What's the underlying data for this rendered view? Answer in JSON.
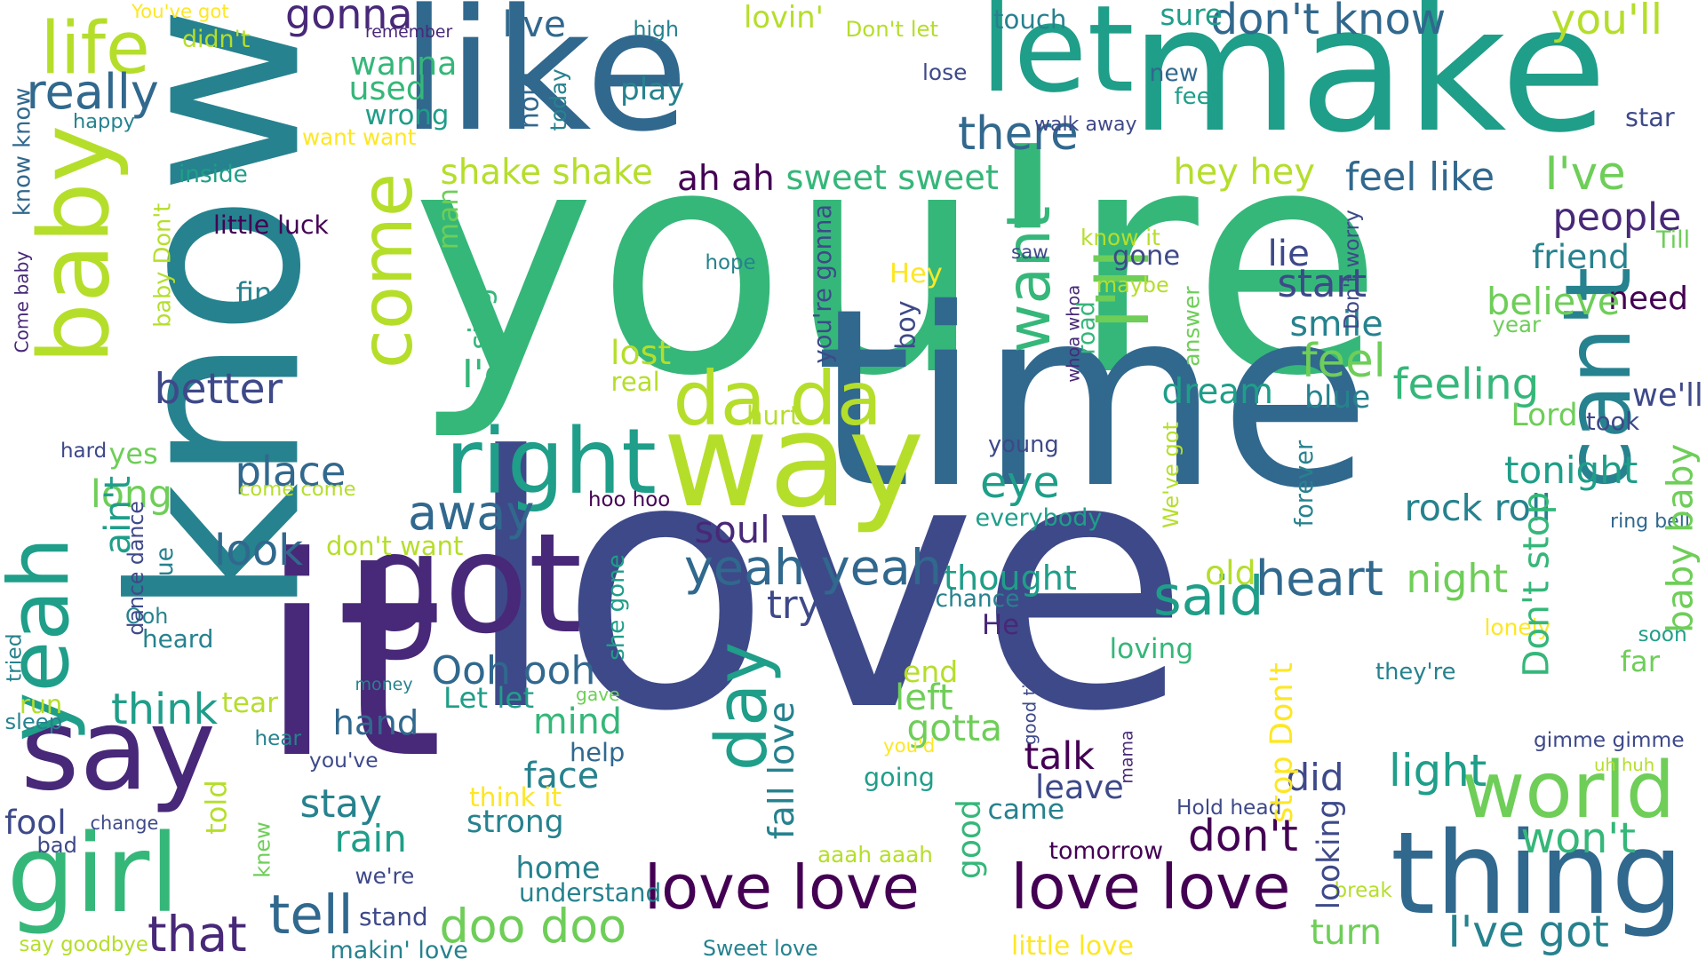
{
  "palette": [
    "#440154",
    "#482878",
    "#3e4989",
    "#31688e",
    "#26828e",
    "#1f9e89",
    "#35b779",
    "#6ece58",
    "#b5de2b",
    "#fde725"
  ],
  "words": [
    {
      "text": "love",
      "color": "#3e4989"
    },
    {
      "text": "you're",
      "color": "#35b779"
    },
    {
      "text": "know",
      "color": "#26828e"
    },
    {
      "text": "time",
      "color": "#31688e"
    },
    {
      "text": "like",
      "color": "#31688e"
    },
    {
      "text": "it",
      "color": "#482878"
    },
    {
      "text": "make",
      "color": "#1f9e89"
    },
    {
      "text": "baby",
      "color": "#b5de2b"
    },
    {
      "text": "come",
      "color": "#b5de2b"
    },
    {
      "text": "can't",
      "color": "#26828e"
    },
    {
      "text": "let",
      "color": "#1f9e89"
    },
    {
      "text": "way",
      "color": "#b5de2b"
    },
    {
      "text": "got",
      "color": "#482878"
    },
    {
      "text": "say",
      "color": "#482878"
    },
    {
      "text": "I'll",
      "color": "#6ece58"
    },
    {
      "text": "love love",
      "color": "#440154"
    },
    {
      "text": "love love",
      "color": "#440154"
    },
    {
      "text": "day",
      "color": "#1f9e89"
    },
    {
      "text": "yeah",
      "color": "#1f9e89"
    },
    {
      "text": "thing",
      "color": "#31688e"
    },
    {
      "text": "girl",
      "color": "#35b779"
    },
    {
      "text": "world",
      "color": "#6ece58"
    },
    {
      "text": "right",
      "color": "#1f9e89"
    },
    {
      "text": "want",
      "color": "#35b779"
    },
    {
      "text": "da da",
      "color": "#b5de2b"
    },
    {
      "text": "life",
      "color": "#b5de2b"
    },
    {
      "text": "yeah yeah",
      "color": "#31688e"
    },
    {
      "text": "doo doo",
      "color": "#6ece58"
    },
    {
      "text": "tell",
      "color": "#31688e"
    },
    {
      "text": "that",
      "color": "#482878"
    },
    {
      "text": "Ooh ooh",
      "color": "#31688e"
    },
    {
      "text": "away",
      "color": "#31688e"
    },
    {
      "text": "said",
      "color": "#1f9e89"
    },
    {
      "text": "heart",
      "color": "#31688e"
    },
    {
      "text": "night",
      "color": "#6ece58"
    },
    {
      "text": "need",
      "color": "#440154"
    },
    {
      "text": "people",
      "color": "#482878"
    },
    {
      "text": "really",
      "color": "#31688e"
    },
    {
      "text": "gonna",
      "color": "#482878"
    },
    {
      "text": "don't know",
      "color": "#31688e"
    },
    {
      "text": "you'll",
      "color": "#b5de2b"
    },
    {
      "text": "there",
      "color": "#31688e"
    },
    {
      "text": "I've",
      "color": "#6ece58"
    },
    {
      "text": "feel",
      "color": "#6ece58"
    },
    {
      "text": "dream",
      "color": "#1f9e89"
    },
    {
      "text": "feeling",
      "color": "#35b779"
    },
    {
      "text": "mind",
      "color": "#35b779"
    },
    {
      "text": "hand",
      "color": "#31688e"
    },
    {
      "text": "think",
      "color": "#1f9e89"
    },
    {
      "text": "eye",
      "color": "#1f9e89"
    },
    {
      "text": "place",
      "color": "#31688e"
    },
    {
      "text": "look",
      "color": "#31688e"
    },
    {
      "text": "long",
      "color": "#6ece58"
    },
    {
      "text": "better",
      "color": "#3e4989"
    },
    {
      "text": "stay",
      "color": "#26828e"
    },
    {
      "text": "rain",
      "color": "#1f9e89"
    },
    {
      "text": "home",
      "color": "#26828e"
    },
    {
      "text": "face",
      "color": "#26828e"
    },
    {
      "text": "light",
      "color": "#1f9e89"
    },
    {
      "text": "leave",
      "color": "#3e4989"
    },
    {
      "text": "tonight",
      "color": "#1f9e89"
    },
    {
      "text": "friend",
      "color": "#26828e"
    },
    {
      "text": "believe",
      "color": "#6ece58"
    },
    {
      "text": "smile",
      "color": "#26828e"
    },
    {
      "text": "start",
      "color": "#3e4989"
    },
    {
      "text": "lie",
      "color": "#3e4989"
    },
    {
      "text": "gone",
      "color": "#3e4989"
    },
    {
      "text": "we'll",
      "color": "#3e4989"
    },
    {
      "text": "rock roll",
      "color": "#26828e"
    },
    {
      "text": "won't",
      "color": "#35b779"
    },
    {
      "text": "I've got",
      "color": "#26828e"
    },
    {
      "text": "don't",
      "color": "#440154"
    },
    {
      "text": "did",
      "color": "#3e4989"
    },
    {
      "text": "turn",
      "color": "#6ece58"
    },
    {
      "text": "gotta",
      "color": "#6ece58"
    },
    {
      "text": "end",
      "color": "#b5de2b"
    },
    {
      "text": "left",
      "color": "#6ece58"
    },
    {
      "text": "talk",
      "color": "#440154"
    },
    {
      "text": "came",
      "color": "#26828e"
    },
    {
      "text": "soul",
      "color": "#482878"
    },
    {
      "text": "try",
      "color": "#3e4989"
    },
    {
      "text": "thought",
      "color": "#1f9e89"
    },
    {
      "text": "old",
      "color": "#b5de2b"
    },
    {
      "text": "chance",
      "color": "#26828e"
    },
    {
      "text": "He",
      "color": "#482878"
    },
    {
      "text": "ah ah",
      "color": "#440154"
    },
    {
      "text": "sweet sweet",
      "color": "#35b779"
    },
    {
      "text": "shake shake",
      "color": "#b5de2b"
    },
    {
      "text": "hey hey",
      "color": "#b5de2b"
    },
    {
      "text": "feel like",
      "color": "#31688e"
    },
    {
      "text": "wanna",
      "color": "#35b779"
    },
    {
      "text": "used",
      "color": "#35b779"
    },
    {
      "text": "wrong",
      "color": "#1f9e89"
    },
    {
      "text": "live",
      "color": "#31688e"
    },
    {
      "text": "play",
      "color": "#26828e"
    },
    {
      "text": "lovin'",
      "color": "#b5de2b"
    },
    {
      "text": "sure",
      "color": "#1f9e89"
    },
    {
      "text": "Hey",
      "color": "#fde725"
    },
    {
      "text": "young",
      "color": "#3e4989"
    },
    {
      "text": "everybody",
      "color": "#1f9e89"
    },
    {
      "text": "blue",
      "color": "#26828e"
    },
    {
      "text": "Lord",
      "color": "#6ece58"
    },
    {
      "text": "took",
      "color": "#3e4989"
    },
    {
      "text": "don't want",
      "color": "#b5de2b"
    },
    {
      "text": "strong",
      "color": "#26828e"
    },
    {
      "text": "understand",
      "color": "#26828e"
    },
    {
      "text": "going",
      "color": "#1f9e89"
    },
    {
      "text": "loving",
      "color": "#35b779"
    },
    {
      "text": "help",
      "color": "#31688e"
    },
    {
      "text": "fool",
      "color": "#3e4989"
    },
    {
      "text": "heard",
      "color": "#26828e"
    },
    {
      "text": "Ooh",
      "color": "#26828e"
    },
    {
      "text": "yes",
      "color": "#6ece58"
    },
    {
      "text": "lost",
      "color": "#b5de2b"
    },
    {
      "text": "real",
      "color": "#b5de2b"
    },
    {
      "text": "I'd",
      "color": "#35b779"
    },
    {
      "text": "hurt",
      "color": "#b5de2b"
    },
    {
      "text": "come come",
      "color": "#b5de2b"
    },
    {
      "text": "hoo hoo",
      "color": "#440154"
    },
    {
      "text": "tear",
      "color": "#b5de2b"
    },
    {
      "text": "Let let",
      "color": "#1f9e89"
    },
    {
      "text": "stand",
      "color": "#3e4989"
    },
    {
      "text": "we're",
      "color": "#3e4989"
    },
    {
      "text": "you've",
      "color": "#3e4989"
    },
    {
      "text": "hear",
      "color": "#26828e"
    },
    {
      "text": "bad",
      "color": "#3e4989"
    },
    {
      "text": "change",
      "color": "#3e4989"
    },
    {
      "text": "run",
      "color": "#b5de2b"
    },
    {
      "text": "sleep",
      "color": "#26828e"
    },
    {
      "text": "money",
      "color": "#26828e"
    },
    {
      "text": "gave",
      "color": "#6ece58"
    },
    {
      "text": "think it",
      "color": "#fde725"
    },
    {
      "text": "aaah aaah",
      "color": "#b5de2b"
    },
    {
      "text": "you'd",
      "color": "#fde725"
    },
    {
      "text": "tomorrow",
      "color": "#440154"
    },
    {
      "text": "Hold head",
      "color": "#3e4989"
    },
    {
      "text": "break",
      "color": "#b5de2b"
    },
    {
      "text": "makin' love",
      "color": "#26828e"
    },
    {
      "text": "say goodbye",
      "color": "#b5de2b"
    },
    {
      "text": "Sweet love",
      "color": "#26828e"
    },
    {
      "text": "little love",
      "color": "#fde725"
    },
    {
      "text": "gimme gimme",
      "color": "#3e4989"
    },
    {
      "text": "uh huh",
      "color": "#b5de2b"
    },
    {
      "text": "they're",
      "color": "#26828e"
    },
    {
      "text": "far",
      "color": "#6ece58"
    },
    {
      "text": "soon",
      "color": "#1f9e89"
    },
    {
      "text": "lonely",
      "color": "#fde725"
    },
    {
      "text": "ring bell",
      "color": "#31688e"
    },
    {
      "text": "year",
      "color": "#6ece58"
    },
    {
      "text": "Till",
      "color": "#6ece58"
    },
    {
      "text": "star",
      "color": "#3e4989"
    },
    {
      "text": "new",
      "color": "#31688e"
    },
    {
      "text": "feet",
      "color": "#1f9e89"
    },
    {
      "text": "lose",
      "color": "#3e4989"
    },
    {
      "text": "walk away",
      "color": "#3e4989"
    },
    {
      "text": "know it",
      "color": "#b5de2b"
    },
    {
      "text": "maybe",
      "color": "#b5de2b"
    },
    {
      "text": "touch",
      "color": "#26828e"
    },
    {
      "text": "Don't let",
      "color": "#b5de2b"
    },
    {
      "text": "high",
      "color": "#26828e"
    },
    {
      "text": "remember",
      "color": "#482878"
    },
    {
      "text": "You've got",
      "color": "#fde725"
    },
    {
      "text": "didn't",
      "color": "#b5de2b"
    },
    {
      "text": "happy",
      "color": "#26828e"
    },
    {
      "text": "want want",
      "color": "#fde725"
    },
    {
      "text": "inside",
      "color": "#1f9e89"
    },
    {
      "text": "little luck",
      "color": "#440154"
    },
    {
      "text": "fine",
      "color": "#26828e"
    },
    {
      "text": "hope",
      "color": "#26828e"
    },
    {
      "text": "saw",
      "color": "#3e4989"
    },
    {
      "text": "hard",
      "color": "#3e4989"
    },
    {
      "text": "good time",
      "color": "#3e4989"
    },
    {
      "text": "hold",
      "color": "#31688e"
    },
    {
      "text": "today",
      "color": "#26828e"
    },
    {
      "text": "man",
      "color": "#6ece58"
    },
    {
      "text": "sing",
      "color": "#35b779"
    },
    {
      "text": "boy",
      "color": "#3e4989"
    },
    {
      "text": "you're gonna",
      "color": "#3e4989"
    },
    {
      "text": "whoa whoa",
      "color": "#482878"
    },
    {
      "text": "road",
      "color": "#35b779"
    },
    {
      "text": "answer",
      "color": "#6ece58"
    },
    {
      "text": "Don't worry",
      "color": "#3e4989"
    },
    {
      "text": "We've got",
      "color": "#b5de2b"
    },
    {
      "text": "forever",
      "color": "#26828e"
    },
    {
      "text": "baby baby",
      "color": "#6ece58"
    },
    {
      "text": "Don't stop",
      "color": "#35b779"
    },
    {
      "text": "stop Don't",
      "color": "#fde725"
    },
    {
      "text": "fall love",
      "color": "#26828e"
    },
    {
      "text": "good",
      "color": "#35b779"
    },
    {
      "text": "looking",
      "color": "#3e4989"
    },
    {
      "text": "knew",
      "color": "#6ece58"
    },
    {
      "text": "told",
      "color": "#b5de2b"
    },
    {
      "text": "true",
      "color": "#26828e"
    },
    {
      "text": "she gone",
      "color": "#1f9e89"
    },
    {
      "text": "mama",
      "color": "#482878"
    },
    {
      "text": "tried",
      "color": "#26828e"
    },
    {
      "text": "ain't",
      "color": "#1f9e89"
    },
    {
      "text": "Come baby",
      "color": "#482878"
    },
    {
      "text": "know know",
      "color": "#31688e"
    },
    {
      "text": "dance dance",
      "color": "#3e4989"
    },
    {
      "text": "baby Don't",
      "color": "#b5de2b"
    }
  ]
}
